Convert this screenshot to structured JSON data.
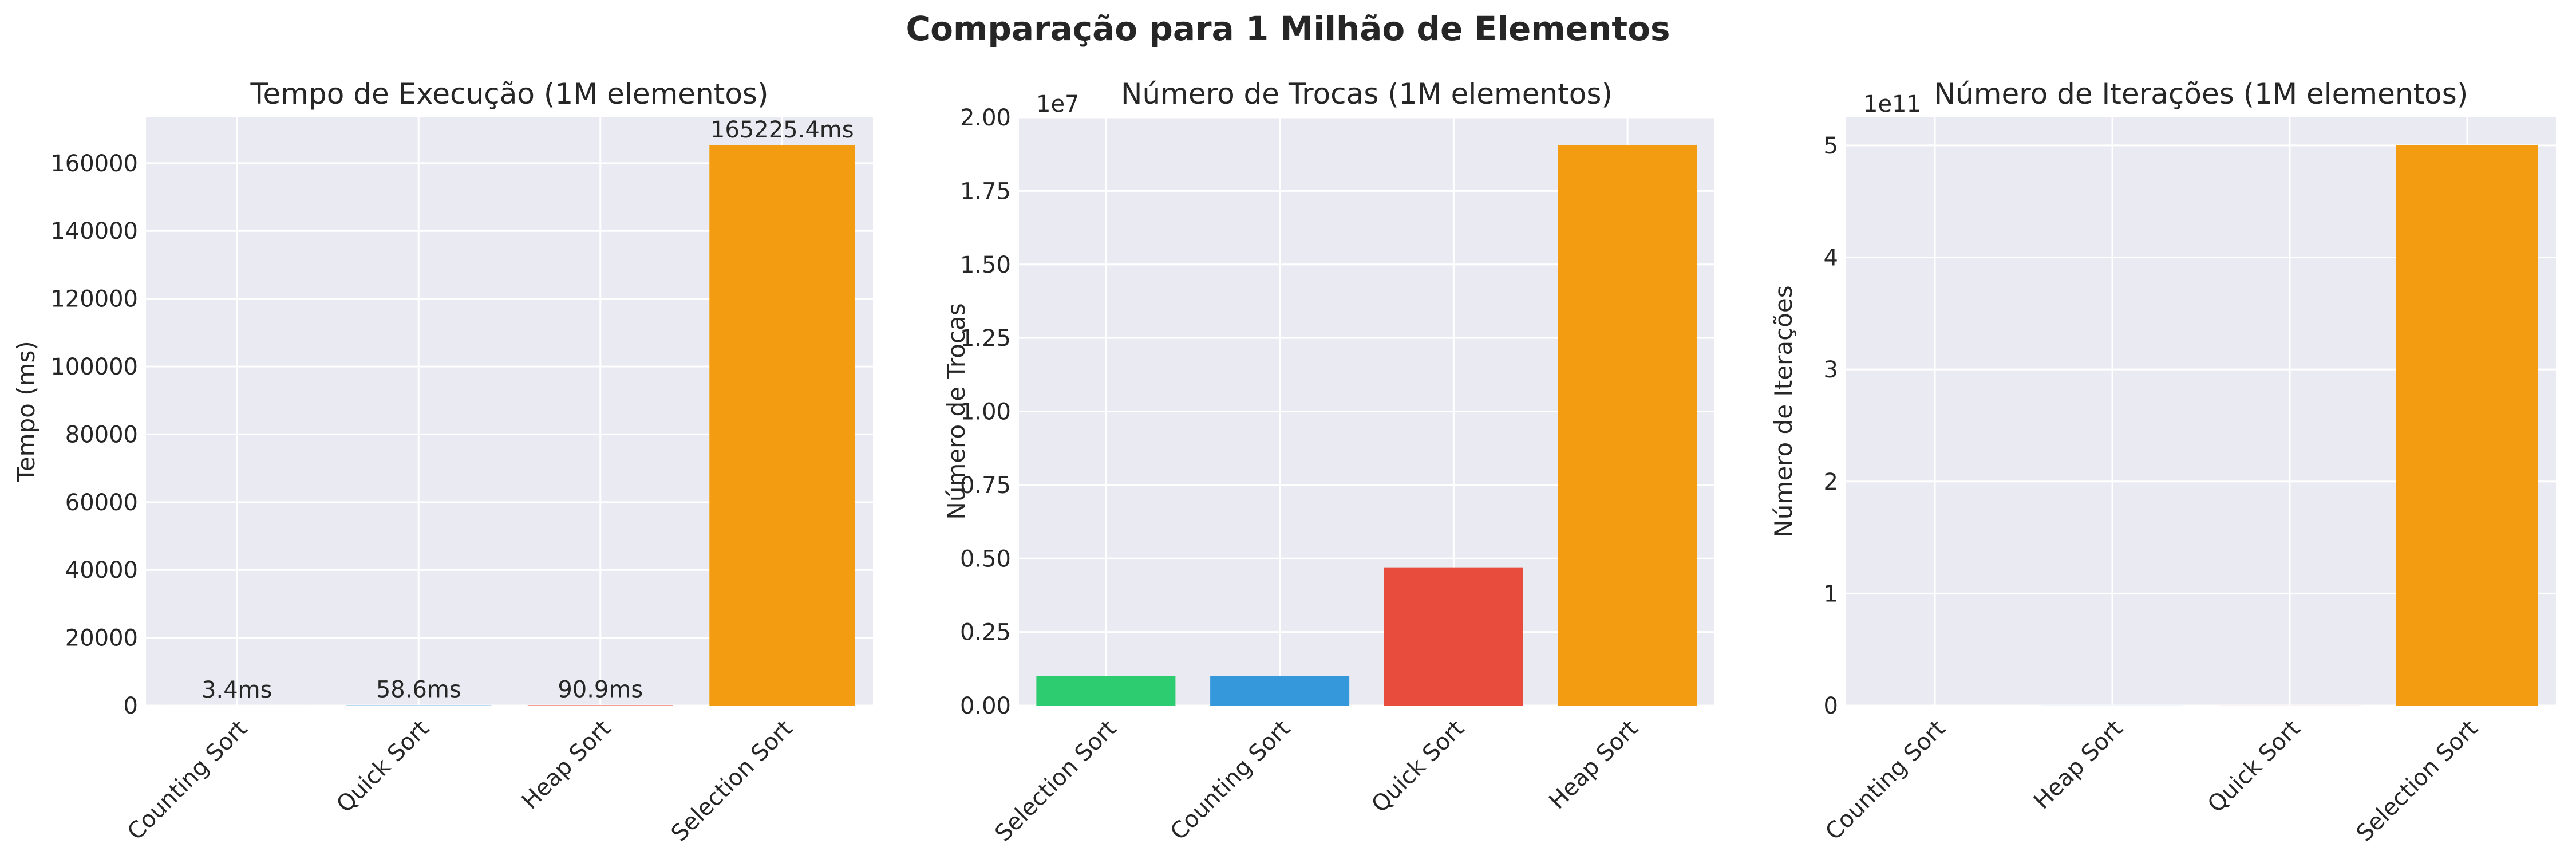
{
  "figure": {
    "title": "Comparação para 1 Milhão de Elementos"
  },
  "chart_data": [
    {
      "type": "bar",
      "title": "Tempo de Execução (1M elementos)",
      "xlabel": "",
      "ylabel": "Tempo (ms)",
      "categories": [
        "Counting Sort",
        "Quick Sort",
        "Heap Sort",
        "Selection Sort"
      ],
      "values": [
        3.4,
        58.6,
        90.9,
        165225.4
      ],
      "value_labels": [
        "3.4ms",
        "58.6ms",
        "90.9ms",
        "165225.4ms"
      ],
      "colors": [
        "#2ecc71",
        "#3498db",
        "#e74c3c",
        "#f39c12"
      ],
      "ylim": [
        0,
        173486.7
      ],
      "yticks": [
        0,
        20000,
        40000,
        60000,
        80000,
        100000,
        120000,
        140000,
        160000
      ],
      "ytick_labels": [
        "0",
        "20000",
        "40000",
        "60000",
        "80000",
        "100000",
        "120000",
        "140000",
        "160000"
      ],
      "offset_text": "",
      "grid": true
    },
    {
      "type": "bar",
      "title": "Número de Trocas (1M elementos)",
      "xlabel": "",
      "ylabel": "Número de Trocas",
      "categories": [
        "Selection Sort",
        "Counting Sort",
        "Quick Sort",
        "Heap Sort"
      ],
      "values": [
        999999,
        1000000,
        4700000,
        19047000
      ],
      "value_labels": [],
      "colors": [
        "#2ecc71",
        "#3498db",
        "#e74c3c",
        "#f39c12"
      ],
      "ylim": [
        0,
        20000000
      ],
      "yticks": [
        0,
        2500000,
        5000000,
        7500000,
        10000000,
        12500000,
        15000000,
        17500000,
        20000000
      ],
      "ytick_labels": [
        "0.00",
        "0.25",
        "0.50",
        "0.75",
        "1.00",
        "1.25",
        "1.50",
        "1.75",
        "2.00"
      ],
      "offset_text": "1e7",
      "grid": true
    },
    {
      "type": "bar",
      "title": "Número de Iterações (1M elementos)",
      "xlabel": "",
      "ylabel": "Número de Iterações",
      "categories": [
        "Counting Sort",
        "Heap Sort",
        "Quick Sort",
        "Selection Sort"
      ],
      "values": [
        2000000,
        40000000,
        40000000,
        500000000000
      ],
      "value_labels": [],
      "colors": [
        "#2ecc71",
        "#3498db",
        "#e74c3c",
        "#f39c12"
      ],
      "ylim": [
        0,
        525000000000
      ],
      "yticks": [
        0,
        100000000000,
        200000000000,
        300000000000,
        400000000000,
        500000000000
      ],
      "ytick_labels": [
        "0",
        "1",
        "2",
        "3",
        "4",
        "5"
      ],
      "offset_text": "1e11",
      "grid": true
    }
  ]
}
